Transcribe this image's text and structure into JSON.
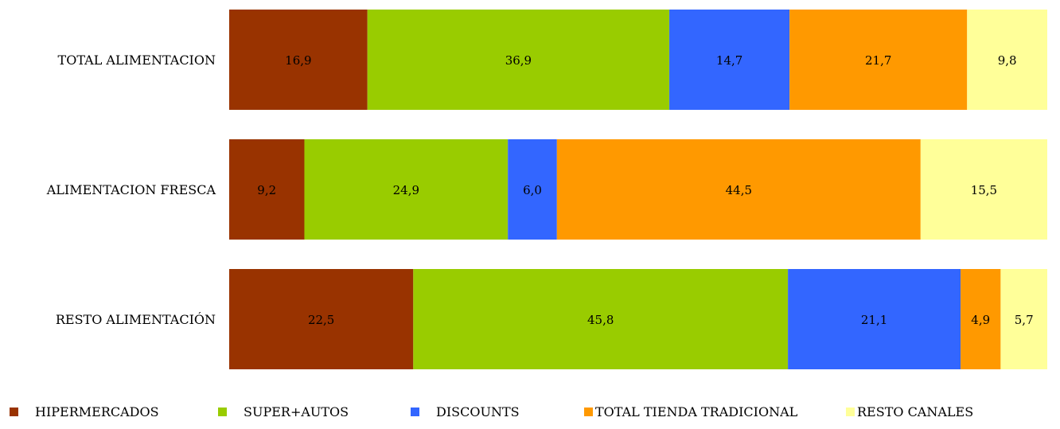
{
  "chart_data": {
    "type": "bar",
    "orientation": "horizontal",
    "stacked": true,
    "percent_stacked": true,
    "categories": [
      "TOTAL ALIMENTACION",
      "ALIMENTACION FRESCA",
      "RESTO ALIMENTACIÓN"
    ],
    "series": [
      {
        "name": "HIPERMERCADOS",
        "color": "#993300",
        "values": [
          16.9,
          9.2,
          22.5
        ],
        "labels": [
          "16,9",
          "9,2",
          "22,5"
        ]
      },
      {
        "name": "SUPER+AUTOS",
        "color": "#99CC00",
        "values": [
          36.9,
          24.9,
          45.8
        ],
        "labels": [
          "36,9",
          "24,9",
          "45,8"
        ]
      },
      {
        "name": "DISCOUNTS",
        "color": "#3366FF",
        "values": [
          14.7,
          6.0,
          21.1
        ],
        "labels": [
          "14,7",
          "6,0",
          "21,1"
        ]
      },
      {
        "name": "TOTAL TIENDA TRADICIONAL",
        "color": "#FF9900",
        "values": [
          21.7,
          44.5,
          4.9
        ],
        "labels": [
          "21,7",
          "44,5",
          "4,9"
        ]
      },
      {
        "name": "RESTO CANALES",
        "color": "#FFFF99",
        "values": [
          9.8,
          15.5,
          5.7
        ],
        "labels": [
          "9,8",
          "15,5",
          "5,7"
        ]
      }
    ],
    "xlim": [
      0,
      100
    ],
    "grid": false,
    "legend_position": "bottom"
  }
}
